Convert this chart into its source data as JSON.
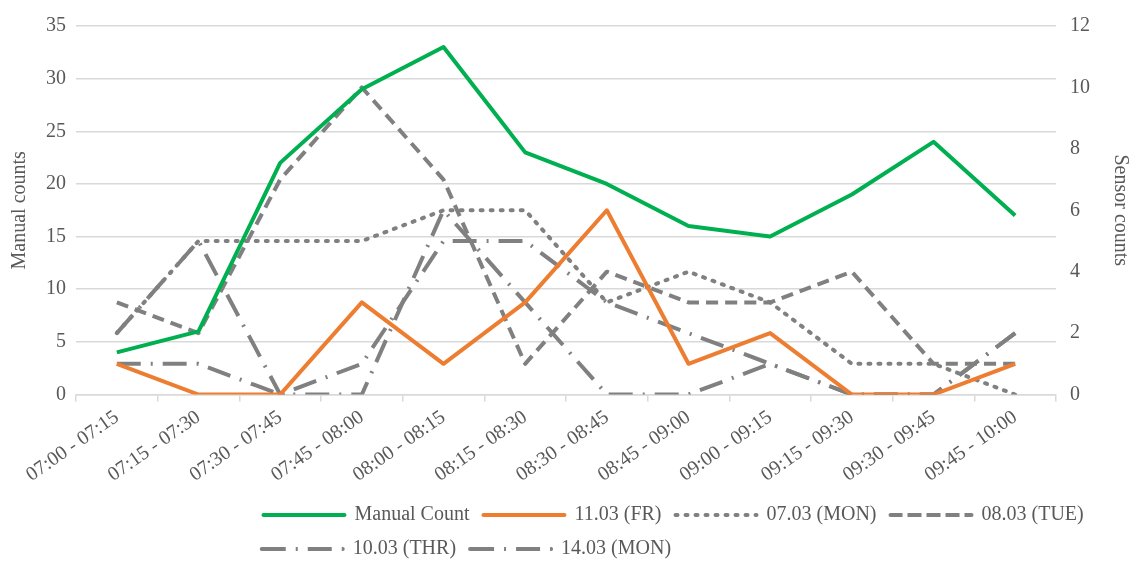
{
  "chart_data": {
    "type": "line",
    "ylabel": "Manual counts",
    "y2label": "Sensor counts",
    "categories": [
      "07:00 - 07:15",
      "07:15 - 07:30",
      "07:30 - 07:45",
      "07:45 - 08:00",
      "08:00 - 08:15",
      "08:15 - 08:30",
      "08:30 - 08:45",
      "08:45 - 09:00",
      "09:00 - 09:15",
      "09:15 - 09:30",
      "09:30 - 09:45",
      "09:45 - 10:00"
    ],
    "series": [
      {
        "name": "Manual Count",
        "color": "#00b050",
        "line_style": "solid",
        "values": [
          4,
          6,
          22,
          29,
          33,
          23,
          20,
          16,
          15,
          19,
          24,
          17
        ]
      },
      {
        "name": "11.03 (FR)",
        "color": "#ed7d31",
        "line_style": "solid",
        "axis": "y2",
        "values": [
          1,
          0,
          0,
          3,
          1,
          3,
          6,
          1,
          2,
          0,
          0,
          1
        ]
      },
      {
        "name": "07.03 (MON)",
        "color": "#808080",
        "line_style": "dotted",
        "axis": "y2",
        "values": [
          2,
          5,
          5,
          5,
          6,
          6,
          3,
          4,
          3,
          1,
          1,
          0
        ]
      },
      {
        "name": "08.03 (TUE)",
        "color": "#808080",
        "line_style": "dashed",
        "axis": "y2",
        "values": [
          3,
          2,
          7,
          10,
          7,
          1,
          4,
          3,
          3,
          4,
          1,
          1
        ]
      },
      {
        "name": "10.03 (THR)",
        "color": "#808080",
        "line_style": "dashdot",
        "axis": "y2",
        "values": [
          2,
          5,
          0,
          0,
          6,
          3,
          0,
          0,
          1,
          0,
          0,
          2
        ]
      },
      {
        "name": "14.03 (MON)",
        "color": "#808080",
        "line_style": "dashdot",
        "axis": "y2",
        "values": [
          1,
          1,
          0,
          1,
          5,
          5,
          3,
          2,
          1,
          0,
          0,
          2
        ]
      }
    ],
    "ylim": [
      0,
      35
    ],
    "yticks": [
      0,
      5,
      10,
      15,
      20,
      25,
      30,
      35
    ],
    "y2lim": [
      0,
      12
    ],
    "y2ticks": [
      0,
      2,
      4,
      6,
      8,
      10,
      12
    ],
    "grid": "y",
    "legend": "bottom",
    "marker": "none"
  }
}
